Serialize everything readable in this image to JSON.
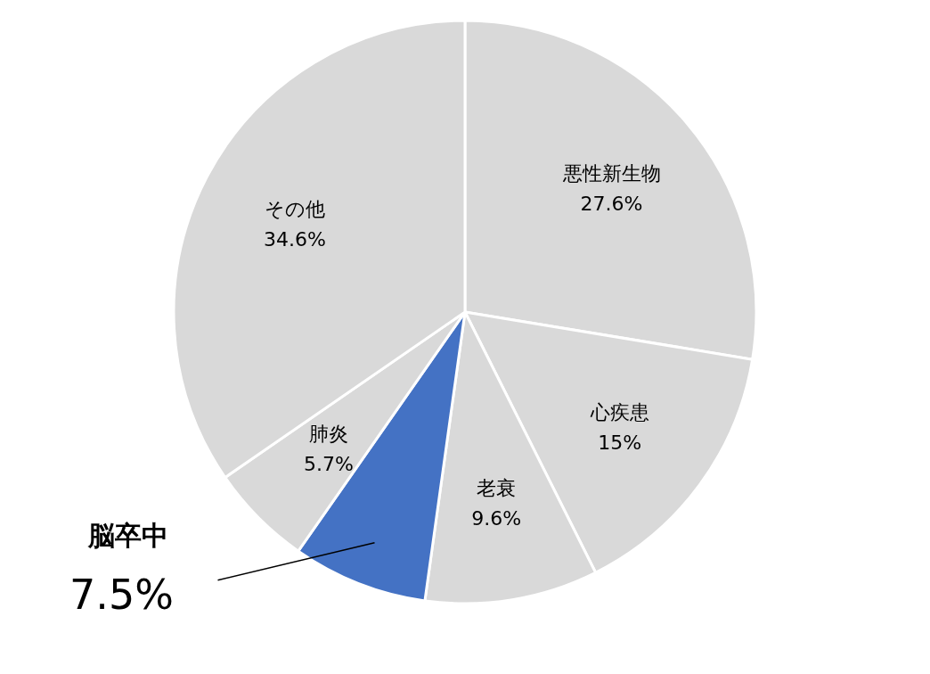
{
  "chart_data": {
    "type": "pie",
    "categories": [
      "悪性新生物",
      "心疾患",
      "老衰",
      "脳卒中",
      "肺炎",
      "その他"
    ],
    "values": [
      27.6,
      15,
      9.6,
      7.5,
      5.7,
      34.6
    ],
    "value_labels": [
      "27.6%",
      "15%",
      "9.6%",
      "7.5%",
      "5.7%",
      "34.6%"
    ],
    "colors": [
      "#d9d9d9",
      "#d9d9d9",
      "#d9d9d9",
      "#4472c4",
      "#d9d9d9",
      "#d9d9d9"
    ],
    "legend": false
  }
}
